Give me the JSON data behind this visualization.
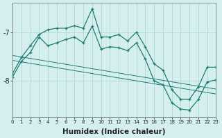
{
  "xlabel": "Humidex (Indice chaleur)",
  "bg_color": "#d4efee",
  "grid_color": "#aed8d6",
  "line_color": "#1e7b72",
  "x": [
    0,
    1,
    2,
    3,
    4,
    5,
    6,
    7,
    8,
    9,
    10,
    11,
    12,
    13,
    14,
    15,
    16,
    17,
    18,
    19,
    20,
    21,
    22,
    23
  ],
  "y_upper": [
    -7.85,
    -7.52,
    -7.28,
    -7.05,
    -6.95,
    -6.92,
    -6.92,
    -6.87,
    -6.92,
    -6.52,
    -7.1,
    -7.1,
    -7.05,
    -7.18,
    -7.0,
    -7.3,
    -7.65,
    -7.78,
    -8.18,
    -8.38,
    -8.38,
    -8.12,
    -7.72,
    -7.72
  ],
  "y_lower": [
    -7.92,
    -7.6,
    -7.42,
    -7.1,
    -7.28,
    -7.22,
    -7.15,
    -7.1,
    -7.22,
    -6.88,
    -7.35,
    -7.3,
    -7.32,
    -7.38,
    -7.22,
    -7.55,
    -8.0,
    -8.08,
    -8.45,
    -8.58,
    -8.6,
    -8.38,
    -8.02,
    -7.98
  ],
  "y_reg1": [
    -7.48,
    -7.51,
    -7.54,
    -7.57,
    -7.6,
    -7.63,
    -7.66,
    -7.69,
    -7.72,
    -7.75,
    -7.78,
    -7.81,
    -7.84,
    -7.87,
    -7.9,
    -7.93,
    -7.96,
    -7.99,
    -8.02,
    -8.05,
    -8.08,
    -8.11,
    -8.14,
    -8.17
  ],
  "y_reg2": [
    -7.58,
    -7.61,
    -7.64,
    -7.67,
    -7.7,
    -7.73,
    -7.76,
    -7.79,
    -7.82,
    -7.85,
    -7.88,
    -7.91,
    -7.94,
    -7.97,
    -8.0,
    -8.03,
    -8.06,
    -8.09,
    -8.12,
    -8.15,
    -8.18,
    -8.21,
    -8.24,
    -8.27
  ],
  "xlim": [
    0,
    23
  ],
  "ylim": [
    -8.75,
    -6.4
  ],
  "yticks": [
    -8.0,
    -7.0
  ],
  "xticks": [
    0,
    1,
    2,
    3,
    4,
    5,
    6,
    7,
    8,
    9,
    10,
    11,
    12,
    13,
    14,
    15,
    16,
    17,
    18,
    19,
    20,
    21,
    22,
    23
  ]
}
